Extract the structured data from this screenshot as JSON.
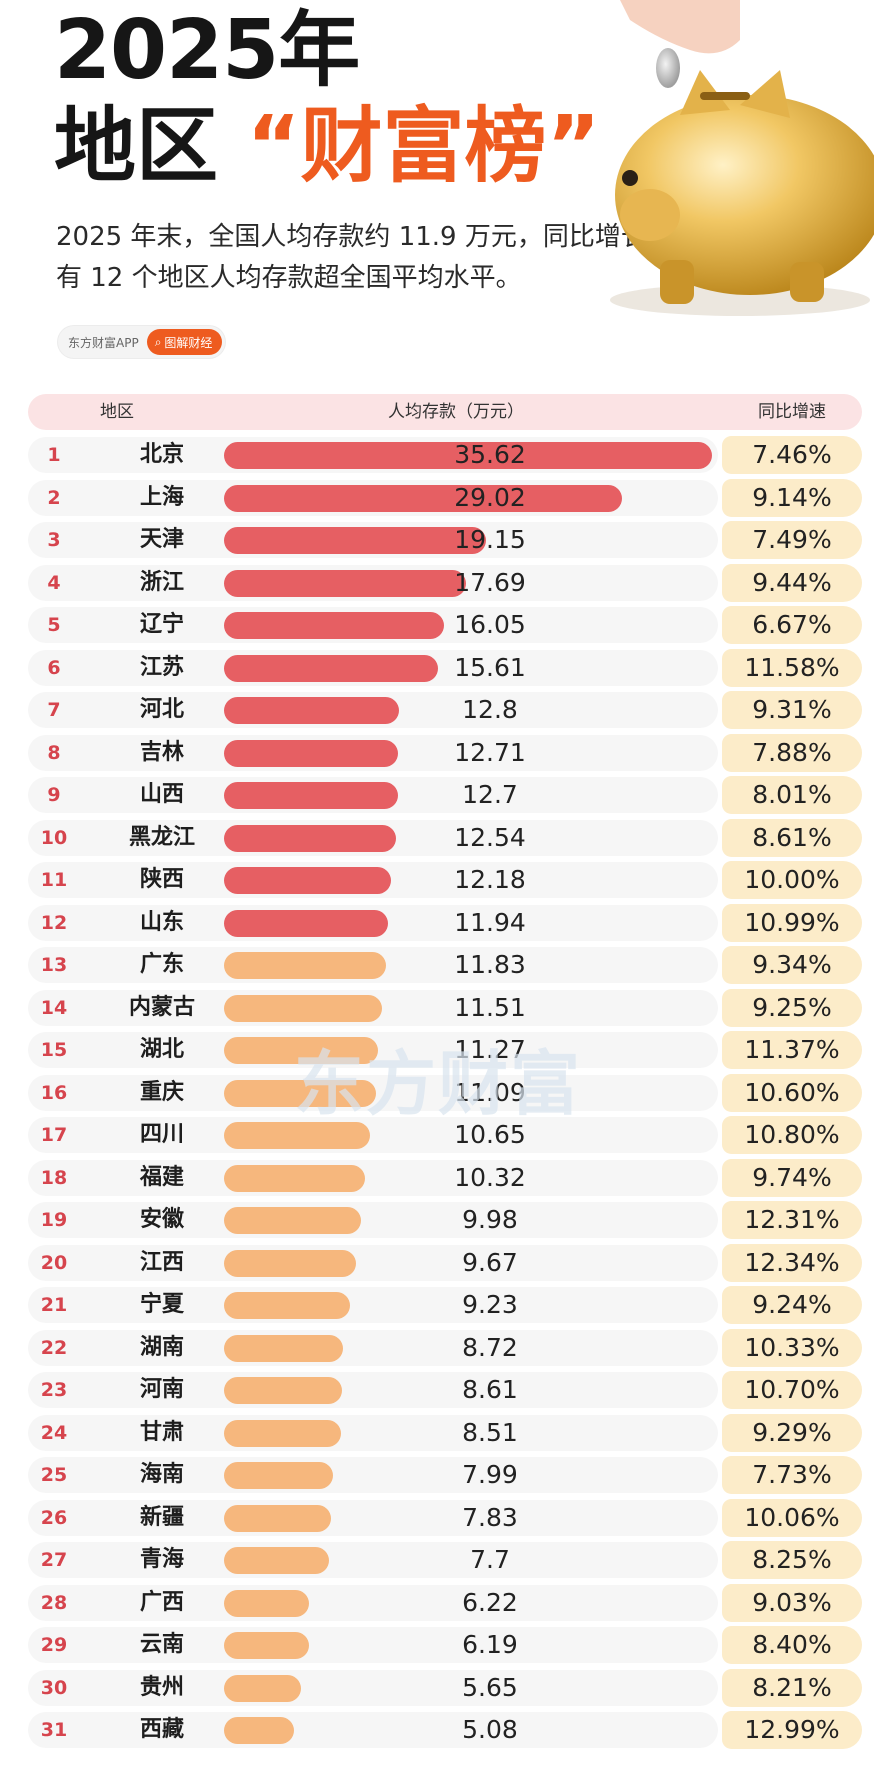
{
  "header": {
    "title_line1": "2025年",
    "title_line2_prefix": "地区",
    "title_line2_accent": "“财富榜”",
    "subtitle_line1": "2025 年末，全国人均存款约 11.9 万元，同比增长 9.71%，",
    "subtitle_line2": "有 12 个地区人均存款超全国平均水平。",
    "app_name": "东方财富APP",
    "button_label": "图解财经"
  },
  "watermark": "东方财富",
  "colors": {
    "above_avg": "#e65f63",
    "below_avg": "#f6b77d",
    "accent": "#ee5b1f"
  },
  "chart_data": {
    "type": "table",
    "columns": [
      "地区",
      "人均存款（万元）",
      "同比增速"
    ],
    "rows": [
      {
        "rank": "1",
        "region": "北京",
        "value": "35.62",
        "growth": "7.46%"
      },
      {
        "rank": "2",
        "region": "上海",
        "value": "29.02",
        "growth": "9.14%"
      },
      {
        "rank": "3",
        "region": "天津",
        "value": "19.15",
        "growth": "7.49%"
      },
      {
        "rank": "4",
        "region": "浙江",
        "value": "17.69",
        "growth": "9.44%"
      },
      {
        "rank": "5",
        "region": "辽宁",
        "value": "16.05",
        "growth": "6.67%"
      },
      {
        "rank": "6",
        "region": "江苏",
        "value": "15.61",
        "growth": "11.58%"
      },
      {
        "rank": "7",
        "region": "河北",
        "value": "12.8",
        "growth": "9.31%"
      },
      {
        "rank": "8",
        "region": "吉林",
        "value": "12.71",
        "growth": "7.88%"
      },
      {
        "rank": "9",
        "region": "山西",
        "value": "12.7",
        "growth": "8.01%"
      },
      {
        "rank": "10",
        "region": "黑龙江",
        "value": "12.54",
        "growth": "8.61%"
      },
      {
        "rank": "11",
        "region": "陕西",
        "value": "12.18",
        "growth": "10.00%"
      },
      {
        "rank": "12",
        "region": "山东",
        "value": "11.94",
        "growth": "10.99%"
      },
      {
        "rank": "13",
        "region": "广东",
        "value": "11.83",
        "growth": "9.34%"
      },
      {
        "rank": "14",
        "region": "内蒙古",
        "value": "11.51",
        "growth": "9.25%"
      },
      {
        "rank": "15",
        "region": "湖北",
        "value": "11.27",
        "growth": "11.37%"
      },
      {
        "rank": "16",
        "region": "重庆",
        "value": "11.09",
        "growth": "10.60%"
      },
      {
        "rank": "17",
        "region": "四川",
        "value": "10.65",
        "growth": "10.80%"
      },
      {
        "rank": "18",
        "region": "福建",
        "value": "10.32",
        "growth": "9.74%"
      },
      {
        "rank": "19",
        "region": "安徽",
        "value": "9.98",
        "growth": "12.31%"
      },
      {
        "rank": "20",
        "region": "江西",
        "value": "9.67",
        "growth": "12.34%"
      },
      {
        "rank": "21",
        "region": "宁夏",
        "value": "9.23",
        "growth": "9.24%"
      },
      {
        "rank": "22",
        "region": "湖南",
        "value": "8.72",
        "growth": "10.33%"
      },
      {
        "rank": "23",
        "region": "河南",
        "value": "8.61",
        "growth": "10.70%"
      },
      {
        "rank": "24",
        "region": "甘肃",
        "value": "8.51",
        "growth": "9.29%"
      },
      {
        "rank": "25",
        "region": "海南",
        "value": "7.99",
        "growth": "7.73%"
      },
      {
        "rank": "26",
        "region": "新疆",
        "value": "7.83",
        "growth": "10.06%"
      },
      {
        "rank": "27",
        "region": "青海",
        "value": "7.7",
        "growth": "8.25%"
      },
      {
        "rank": "28",
        "region": "广西",
        "value": "6.22",
        "growth": "9.03%"
      },
      {
        "rank": "29",
        "region": "云南",
        "value": "6.19",
        "growth": "8.40%"
      },
      {
        "rank": "30",
        "region": "贵州",
        "value": "5.65",
        "growth": "8.21%"
      },
      {
        "rank": "31",
        "region": "西藏",
        "value": "5.08",
        "growth": "12.99%"
      }
    ]
  }
}
